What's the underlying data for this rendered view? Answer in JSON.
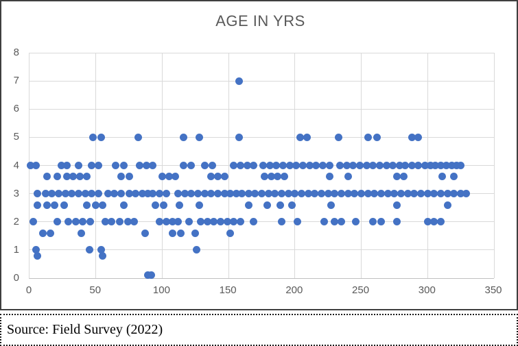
{
  "colors": {
    "accent": "#4472C4",
    "gridline": "#D9D9D9",
    "axis_line": "#BFBFBF",
    "label": "#595959",
    "frame_border": "#3F3F3F"
  },
  "source": {
    "text": "Source: Field Survey (2022)"
  },
  "chart_data": {
    "type": "scatter",
    "title": "AGE IN YRS",
    "xlabel": "",
    "ylabel": "",
    "xlim": [
      0,
      350
    ],
    "ylim": [
      0,
      8
    ],
    "x_ticks": [
      0,
      50,
      100,
      150,
      200,
      250,
      300,
      350
    ],
    "y_ticks": [
      0,
      1,
      2,
      3,
      4,
      5,
      6,
      7,
      8
    ],
    "grid": true,
    "legend": false,
    "point_color": "#4472C4",
    "points": [
      [
        158,
        7
      ],
      [
        48,
        5
      ],
      [
        54,
        5
      ],
      [
        82,
        5
      ],
      [
        116,
        5
      ],
      [
        128,
        5
      ],
      [
        158,
        5
      ],
      [
        204,
        5
      ],
      [
        209,
        5
      ],
      [
        233,
        5
      ],
      [
        255,
        5
      ],
      [
        262,
        5
      ],
      [
        288,
        5
      ],
      [
        293,
        5
      ],
      [
        1,
        4
      ],
      [
        5,
        4
      ],
      [
        24,
        4
      ],
      [
        28,
        4
      ],
      [
        37,
        4
      ],
      [
        47,
        4
      ],
      [
        52,
        4
      ],
      [
        65,
        4
      ],
      [
        71,
        4
      ],
      [
        83,
        4
      ],
      [
        88,
        4
      ],
      [
        93,
        4
      ],
      [
        116,
        4
      ],
      [
        122,
        4
      ],
      [
        132,
        4
      ],
      [
        138,
        4
      ],
      [
        154,
        4
      ],
      [
        159,
        4
      ],
      [
        164,
        4
      ],
      [
        169,
        4
      ],
      [
        176,
        4
      ],
      [
        181,
        4
      ],
      [
        186,
        4
      ],
      [
        191,
        4
      ],
      [
        196,
        4
      ],
      [
        201,
        4
      ],
      [
        206,
        4
      ],
      [
        211,
        4
      ],
      [
        216,
        4
      ],
      [
        221,
        4
      ],
      [
        226,
        4
      ],
      [
        234,
        4
      ],
      [
        239,
        4
      ],
      [
        244,
        4
      ],
      [
        249,
        4
      ],
      [
        254,
        4
      ],
      [
        259,
        4
      ],
      [
        264,
        4
      ],
      [
        269,
        4
      ],
      [
        274,
        4
      ],
      [
        279,
        4
      ],
      [
        283,
        4
      ],
      [
        288,
        4
      ],
      [
        293,
        4
      ],
      [
        298,
        4
      ],
      [
        302,
        4
      ],
      [
        306,
        4
      ],
      [
        310,
        4
      ],
      [
        314,
        4
      ],
      [
        318,
        4
      ],
      [
        322,
        4
      ],
      [
        325,
        4
      ],
      [
        13,
        3.6
      ],
      [
        21,
        3.6
      ],
      [
        28,
        3.6
      ],
      [
        33,
        3.6
      ],
      [
        38,
        3.6
      ],
      [
        43,
        3.6
      ],
      [
        69,
        3.6
      ],
      [
        75,
        3.6
      ],
      [
        100,
        3.6
      ],
      [
        105,
        3.6
      ],
      [
        110,
        3.6
      ],
      [
        137,
        3.6
      ],
      [
        142,
        3.6
      ],
      [
        147,
        3.6
      ],
      [
        177,
        3.6
      ],
      [
        182,
        3.6
      ],
      [
        187,
        3.6
      ],
      [
        192,
        3.6
      ],
      [
        226,
        3.6
      ],
      [
        240,
        3.6
      ],
      [
        277,
        3.6
      ],
      [
        282,
        3.6
      ],
      [
        311,
        3.6
      ],
      [
        320,
        3.6
      ],
      [
        6,
        3
      ],
      [
        12,
        3
      ],
      [
        17,
        3
      ],
      [
        22,
        3
      ],
      [
        27,
        3
      ],
      [
        32,
        3
      ],
      [
        37,
        3
      ],
      [
        42,
        3
      ],
      [
        47,
        3
      ],
      [
        52,
        3
      ],
      [
        59,
        3
      ],
      [
        64,
        3
      ],
      [
        69,
        3
      ],
      [
        75,
        3
      ],
      [
        80,
        3
      ],
      [
        85,
        3
      ],
      [
        89,
        3
      ],
      [
        93,
        3
      ],
      [
        98,
        3
      ],
      [
        103,
        3
      ],
      [
        112,
        3
      ],
      [
        117,
        3
      ],
      [
        122,
        3
      ],
      [
        127,
        3
      ],
      [
        132,
        3
      ],
      [
        137,
        3
      ],
      [
        142,
        3
      ],
      [
        147,
        3
      ],
      [
        151,
        3
      ],
      [
        156,
        3
      ],
      [
        160,
        3
      ],
      [
        165,
        3
      ],
      [
        170,
        3
      ],
      [
        175,
        3
      ],
      [
        180,
        3
      ],
      [
        185,
        3
      ],
      [
        190,
        3
      ],
      [
        195,
        3
      ],
      [
        200,
        3
      ],
      [
        205,
        3
      ],
      [
        210,
        3
      ],
      [
        215,
        3
      ],
      [
        220,
        3
      ],
      [
        225,
        3
      ],
      [
        230,
        3
      ],
      [
        235,
        3
      ],
      [
        240,
        3
      ],
      [
        245,
        3
      ],
      [
        250,
        3
      ],
      [
        255,
        3
      ],
      [
        260,
        3
      ],
      [
        265,
        3
      ],
      [
        270,
        3
      ],
      [
        275,
        3
      ],
      [
        280,
        3
      ],
      [
        285,
        3
      ],
      [
        290,
        3
      ],
      [
        295,
        3
      ],
      [
        300,
        3
      ],
      [
        305,
        3
      ],
      [
        310,
        3
      ],
      [
        315,
        3
      ],
      [
        320,
        3
      ],
      [
        325,
        3
      ],
      [
        329,
        3
      ],
      [
        6,
        2.6
      ],
      [
        13,
        2.6
      ],
      [
        19,
        2.6
      ],
      [
        26,
        2.6
      ],
      [
        43,
        2.6
      ],
      [
        50,
        2.6
      ],
      [
        55,
        2.6
      ],
      [
        71,
        2.6
      ],
      [
        95,
        2.6
      ],
      [
        101,
        2.6
      ],
      [
        113,
        2.6
      ],
      [
        128,
        2.6
      ],
      [
        165,
        2.6
      ],
      [
        179,
        2.6
      ],
      [
        189,
        2.6
      ],
      [
        198,
        2.6
      ],
      [
        227,
        2.6
      ],
      [
        277,
        2.6
      ],
      [
        315,
        2.6
      ],
      [
        3,
        2
      ],
      [
        21,
        2
      ],
      [
        29,
        2
      ],
      [
        35,
        2
      ],
      [
        40,
        2
      ],
      [
        46,
        2
      ],
      [
        57,
        2
      ],
      [
        62,
        2
      ],
      [
        68,
        2
      ],
      [
        74,
        2
      ],
      [
        79,
        2
      ],
      [
        98,
        2
      ],
      [
        103,
        2
      ],
      [
        108,
        2
      ],
      [
        112,
        2
      ],
      [
        120,
        2
      ],
      [
        129,
        2
      ],
      [
        134,
        2
      ],
      [
        139,
        2
      ],
      [
        144,
        2
      ],
      [
        149,
        2
      ],
      [
        154,
        2
      ],
      [
        159,
        2
      ],
      [
        169,
        2
      ],
      [
        190,
        2
      ],
      [
        202,
        2
      ],
      [
        222,
        2
      ],
      [
        230,
        2
      ],
      [
        235,
        2
      ],
      [
        246,
        2
      ],
      [
        259,
        2
      ],
      [
        265,
        2
      ],
      [
        277,
        2
      ],
      [
        300,
        2
      ],
      [
        305,
        2
      ],
      [
        310,
        2
      ],
      [
        10,
        1.6
      ],
      [
        16,
        1.6
      ],
      [
        39,
        1.6
      ],
      [
        87,
        1.6
      ],
      [
        108,
        1.6
      ],
      [
        114,
        1.6
      ],
      [
        125,
        1.6
      ],
      [
        151,
        1.6
      ],
      [
        5,
        1
      ],
      [
        45,
        1
      ],
      [
        54,
        1
      ],
      [
        126,
        1
      ],
      [
        6,
        0.8
      ],
      [
        55,
        0.8
      ],
      [
        89,
        0.1
      ],
      [
        92,
        0.1
      ]
    ]
  }
}
